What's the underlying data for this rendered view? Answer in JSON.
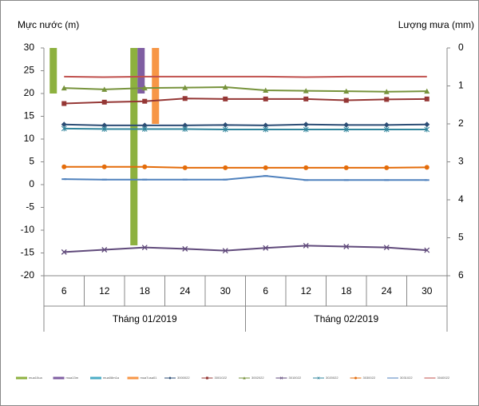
{
  "chart_data": {
    "type": "bar-line",
    "y_label": "Mực nước (m)",
    "y2_label": "Lượng mưa (mm)",
    "categories": [
      "6",
      "12",
      "18",
      "24",
      "30",
      "6",
      "12",
      "18",
      "24",
      "30"
    ],
    "groups": [
      "Tháng 01/2019",
      "Tháng 02/2019"
    ],
    "ylim": [
      -20,
      30
    ],
    "yticks": [
      -20,
      -15,
      -10,
      -5,
      0,
      5,
      10,
      15,
      20,
      25,
      30
    ],
    "y2lim": [
      0,
      6
    ],
    "y2ticks": [
      0,
      1,
      2,
      3,
      4,
      5,
      6
    ],
    "y2_inverted": true,
    "series": [
      {
        "name": "mua10ua",
        "type": "bar",
        "axis": "y2",
        "color": "#8db13f",
        "values": [
          1.2,
          0,
          5.2,
          0,
          0,
          0,
          0,
          0,
          0,
          0
        ]
      },
      {
        "name": "mua13m",
        "type": "bar",
        "axis": "y2",
        "color": "#7f5ea2",
        "values": [
          0,
          0,
          1.2,
          0,
          0,
          0,
          0,
          0,
          0,
          0
        ]
      },
      {
        "name": "mua08m1a",
        "type": "bar",
        "axis": "y2",
        "color": "#4bacc6",
        "values": [
          0,
          0,
          0,
          0,
          0,
          0,
          0,
          0,
          0,
          0
        ]
      },
      {
        "name": "mua7usa01",
        "type": "bar",
        "axis": "y2",
        "color": "#f79646",
        "values": [
          0,
          0,
          2.0,
          0,
          0,
          0,
          0,
          0,
          0,
          0
        ]
      },
      {
        "name": "3000022",
        "type": "line",
        "marker": "diamond",
        "color": "#2c4d75",
        "values": [
          13.2,
          13.0,
          13.0,
          13.0,
          13.1,
          13.0,
          13.2,
          13.1,
          13.1,
          13.2
        ]
      },
      {
        "name": "3001022",
        "type": "line",
        "marker": "square",
        "color": "#953735",
        "values": [
          17.8,
          18.1,
          18.3,
          18.9,
          18.8,
          18.8,
          18.8,
          18.5,
          18.7,
          18.8
        ]
      },
      {
        "name": "3002022",
        "type": "line",
        "marker": "triangle",
        "color": "#77933c",
        "values": [
          21.2,
          20.9,
          21.2,
          21.3,
          21.4,
          20.7,
          20.6,
          20.5,
          20.4,
          20.5
        ]
      },
      {
        "name": "3010022",
        "type": "line",
        "marker": "x",
        "color": "#604a7b",
        "values": [
          -14.8,
          -14.3,
          -13.8,
          -14.1,
          -14.5,
          -13.9,
          -13.4,
          -13.6,
          -13.8,
          -14.4
        ]
      },
      {
        "name": "3020022",
        "type": "line",
        "marker": "star",
        "color": "#31859c",
        "values": [
          12.3,
          12.2,
          12.2,
          12.2,
          12.1,
          12.1,
          12.1,
          12.1,
          12.1,
          12.1
        ]
      },
      {
        "name": "3030022",
        "type": "line",
        "marker": "circle",
        "color": "#e46c0a",
        "values": [
          3.9,
          3.9,
          3.9,
          3.7,
          3.7,
          3.7,
          3.7,
          3.7,
          3.7,
          3.8
        ]
      },
      {
        "name": "3031022",
        "type": "line",
        "marker": "dash",
        "color": "#4f81bd",
        "values": [
          1.2,
          1.1,
          1.1,
          1.1,
          1.1,
          1.9,
          1.0,
          1.0,
          1.0,
          1.0
        ]
      },
      {
        "name": "3040022",
        "type": "line",
        "marker": "none",
        "color": "#c0504d",
        "values": [
          23.7,
          23.6,
          23.7,
          23.7,
          23.7,
          23.7,
          23.6,
          23.7,
          23.7,
          23.7
        ]
      }
    ]
  }
}
